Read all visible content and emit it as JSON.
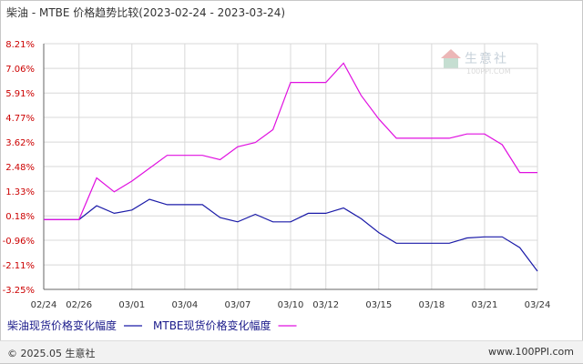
{
  "header": {
    "title": "柴油 - MTBE 价格趋势比较(2023-02-24 - 2023-03-24)"
  },
  "watermark": {
    "name": "生意社",
    "url": "100PPI.COM"
  },
  "footer": {
    "copyright": "© 2025.05 生意社",
    "site": "www.100PPI.com"
  },
  "colors": {
    "series1": "#1a1aa8",
    "series2": "#e010e0",
    "yAxisLabel": "#cc0000",
    "grid": "#d8d8d8"
  },
  "chart_data": {
    "type": "line",
    "title": "柴油 - MTBE 价格趋势比较(2023-02-24 - 2023-03-24)",
    "xlabel": "",
    "ylabel": "",
    "x": [
      "02/24",
      "02/25",
      "02/26",
      "02/27",
      "02/28",
      "03/01",
      "03/02",
      "03/03",
      "03/04",
      "03/05",
      "03/06",
      "03/07",
      "03/08",
      "03/09",
      "03/10",
      "03/11",
      "03/12",
      "03/13",
      "03/14",
      "03/15",
      "03/16",
      "03/17",
      "03/18",
      "03/19",
      "03/20",
      "03/21",
      "03/22",
      "03/23",
      "03/24"
    ],
    "x_tick_labels": [
      "02/24",
      "02/26",
      "03/01",
      "03/04",
      "03/07",
      "03/10",
      "03/12",
      "03/15",
      "03/18",
      "03/21",
      "03/24"
    ],
    "x_tick_positions": [
      0,
      2,
      5,
      8,
      11,
      14,
      16,
      19,
      22,
      25,
      28
    ],
    "y_ticks": [
      8.21,
      7.06,
      5.91,
      4.77,
      3.62,
      2.48,
      1.33,
      0.18,
      -0.96,
      -2.11,
      -3.25
    ],
    "y_tick_labels": [
      "8.21%",
      "7.06%",
      "5.91%",
      "4.77%",
      "3.62%",
      "2.48%",
      "1.33%",
      "0.18%",
      "-0.96%",
      "-2.11%",
      "-3.25%"
    ],
    "ylim": [
      -3.25,
      8.21
    ],
    "grid": true,
    "series": [
      {
        "name": "柴油现货价格变化幅度",
        "values": [
          0,
          0,
          0,
          0.65,
          0.3,
          0.45,
          0.95,
          0.7,
          0.7,
          0.7,
          0.1,
          -0.1,
          0.25,
          -0.1,
          -0.1,
          0.3,
          0.3,
          0.55,
          0.05,
          -0.6,
          -1.1,
          -1.1,
          -1.1,
          -1.1,
          -0.85,
          -0.8,
          -0.8,
          -1.3,
          -2.4
        ]
      },
      {
        "name": "MTBE现货价格变化幅度",
        "values": [
          0,
          0,
          0,
          1.95,
          1.3,
          1.8,
          2.4,
          3.0,
          3.0,
          3.0,
          2.8,
          3.4,
          3.6,
          4.2,
          6.4,
          6.4,
          6.4,
          7.3,
          5.8,
          4.7,
          3.8,
          3.8,
          3.8,
          3.8,
          4.0,
          4.0,
          3.5,
          2.2,
          2.2
        ]
      }
    ],
    "legend_position": "bottom-left"
  }
}
